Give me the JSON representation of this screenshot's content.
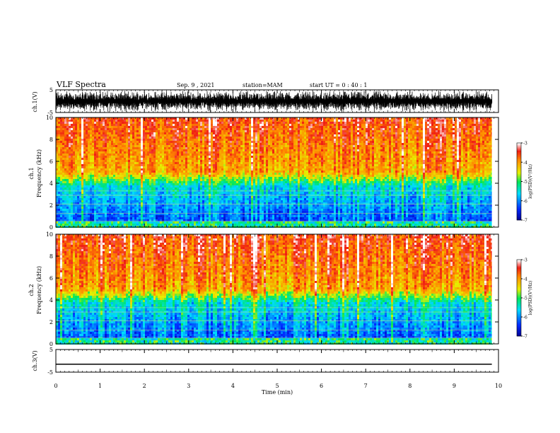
{
  "header": {
    "title": "VLF Spectra",
    "date": "Sep. 9 , 2021",
    "station": "station=MAM",
    "start_ut": "start  UT =  0 : 40 : 1"
  },
  "chart_data": [
    {
      "type": "line",
      "name": "ch1-waveform",
      "ylabel": "ch.1(V)",
      "ylim": [
        -5,
        5
      ],
      "y_ticks": [
        "5",
        "-5"
      ],
      "x": "time (min), 0 to 9.85",
      "note": "dense noise-like waveform filling roughly -4.5 to 4.5 V"
    },
    {
      "type": "heatmap",
      "name": "ch1-spectrogram",
      "ylabel": "ch.1\nFrequency (kHz)",
      "ylim": [
        0,
        10
      ],
      "y_ticks": [
        "0",
        "2",
        "4",
        "6",
        "8",
        "10"
      ],
      "xlim": [
        0,
        9.85
      ],
      "colorbar": {
        "label": "log(PSD)(V²/Hz)",
        "range": [
          -7,
          -3
        ],
        "ticks": [
          "-3",
          "-4",
          "-5",
          "-6",
          "-7"
        ]
      },
      "description_levels": {
        "0-4kHz": "blue/cyan (-6 to -5)",
        "4-5kHz": "green/yellow (-5 to -4.5)",
        "5-10kHz": "orange/red (-4 to -3)"
      }
    },
    {
      "type": "heatmap",
      "name": "ch2-spectrogram",
      "ylabel": "ch.2\nFrequency (kHz)",
      "ylim": [
        0,
        10
      ],
      "y_ticks": [
        "0",
        "2",
        "4",
        "6",
        "8",
        "10"
      ],
      "xlim": [
        0,
        9.85
      ],
      "colorbar": {
        "label": "log(PSD)(V²/Hz)",
        "range": [
          -7,
          -3
        ],
        "ticks": [
          "-3",
          "-4",
          "-5",
          "-6",
          "-7"
        ]
      }
    },
    {
      "type": "line",
      "name": "ch3-waveform",
      "ylabel": "ch.3(V)",
      "ylim": [
        -5,
        5
      ],
      "y_ticks": [
        "5",
        "-5"
      ],
      "x": [
        0,
        9.85
      ],
      "y": [
        -1.5,
        -1.5
      ]
    }
  ],
  "x_axis": {
    "label": "Time  (min)",
    "range": [
      0,
      10
    ],
    "ticks": [
      "0",
      "1",
      "2",
      "3",
      "4",
      "5",
      "6",
      "7",
      "8",
      "9",
      "10"
    ]
  },
  "colors": {
    "axis": "#000000",
    "background": "#ffffff"
  }
}
